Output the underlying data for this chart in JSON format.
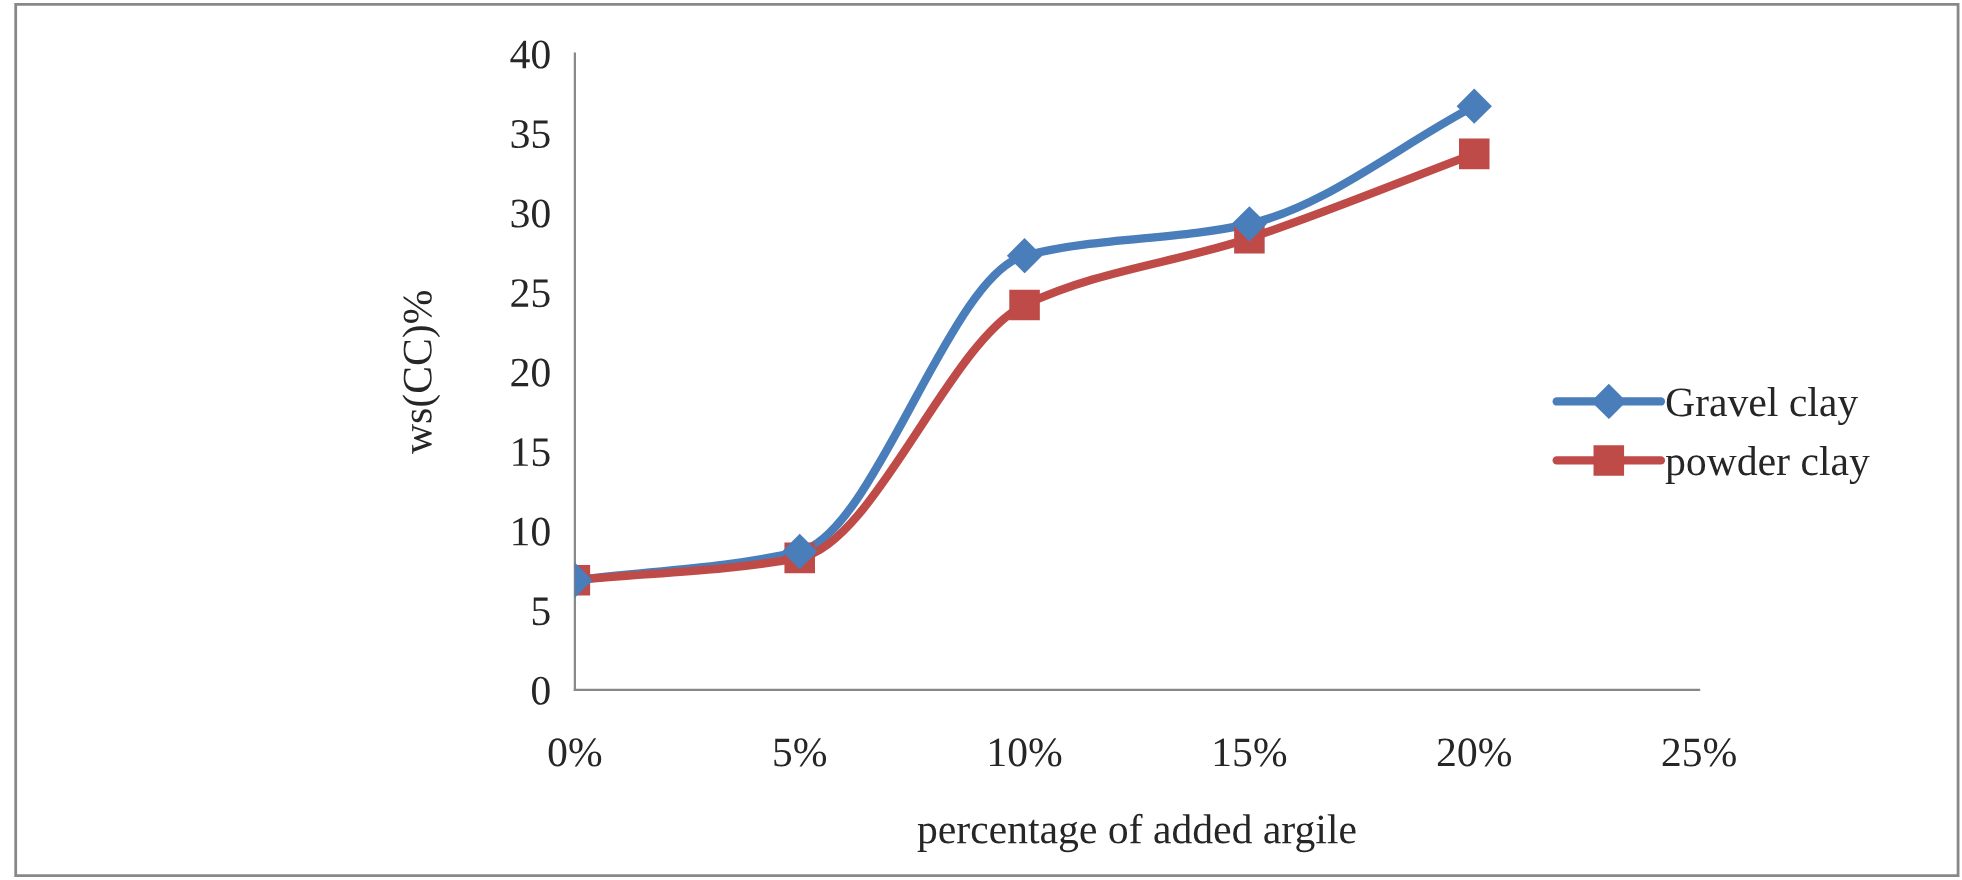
{
  "chart_data": {
    "type": "line",
    "xlabel": "percentage of added argile",
    "ylabel": "ws(CC)%",
    "x": [
      0,
      5,
      10,
      15,
      20
    ],
    "series": [
      {
        "name": "Gravel clay",
        "color": "#4a7ebb",
        "marker": "diamond",
        "values": [
          6.9,
          8.7,
          27.3,
          29.3,
          36.7
        ]
      },
      {
        "name": "powder clay",
        "color": "#be4b48",
        "marker": "square",
        "values": [
          6.9,
          8.3,
          24.2,
          28.4,
          33.7
        ]
      }
    ],
    "xlim": [
      0,
      25
    ],
    "xticks": [
      {
        "value": 0,
        "label": "0%"
      },
      {
        "value": 5,
        "label": "5%"
      },
      {
        "value": 10,
        "label": "10%"
      },
      {
        "value": 15,
        "label": "15%"
      },
      {
        "value": 20,
        "label": "20%"
      },
      {
        "value": 25,
        "label": "25%"
      }
    ],
    "ylim": [
      0,
      40
    ],
    "yticks": [
      0,
      5,
      10,
      15,
      20,
      25,
      30,
      35,
      40
    ],
    "grid": false,
    "legend": "right",
    "line_style": "solid"
  }
}
